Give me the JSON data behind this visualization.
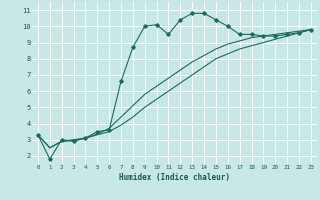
{
  "xlabel": "Humidex (Indice chaleur)",
  "bg_color": "#c8e8e8",
  "line_color": "#1a6b5a",
  "grid_color": "#ffffff",
  "xlim": [
    -0.5,
    23.5
  ],
  "ylim": [
    1.5,
    11.5
  ],
  "xticks": [
    0,
    1,
    2,
    3,
    4,
    5,
    6,
    7,
    8,
    9,
    10,
    11,
    12,
    13,
    14,
    15,
    16,
    17,
    18,
    19,
    20,
    21,
    22,
    23
  ],
  "yticks": [
    2,
    3,
    4,
    5,
    6,
    7,
    8,
    9,
    10,
    11
  ],
  "curve1_x": [
    0,
    1,
    2,
    3,
    4,
    5,
    6,
    7,
    8,
    9,
    10,
    11,
    12,
    13,
    14,
    15,
    16,
    17,
    18,
    19,
    20,
    21,
    22,
    23
  ],
  "curve1_y": [
    3.3,
    1.8,
    3.0,
    2.9,
    3.1,
    3.5,
    3.6,
    6.6,
    8.7,
    10.0,
    10.1,
    9.5,
    10.4,
    10.8,
    10.8,
    10.4,
    10.0,
    9.5,
    9.5,
    9.4,
    9.4,
    9.5,
    9.6,
    9.8
  ],
  "curve2_x": [
    0,
    1,
    2,
    3,
    4,
    5,
    6,
    7,
    8,
    9,
    10,
    11,
    12,
    13,
    14,
    15,
    16,
    17,
    18,
    19,
    20,
    21,
    22,
    23
  ],
  "curve2_y": [
    3.3,
    2.5,
    2.9,
    3.0,
    3.1,
    3.3,
    3.5,
    3.9,
    4.4,
    5.0,
    5.5,
    6.0,
    6.5,
    7.0,
    7.5,
    8.0,
    8.3,
    8.6,
    8.8,
    9.0,
    9.2,
    9.4,
    9.6,
    9.8
  ],
  "curve3_x": [
    0,
    1,
    2,
    3,
    4,
    5,
    6,
    7,
    8,
    9,
    10,
    11,
    12,
    13,
    14,
    15,
    16,
    17,
    18,
    19,
    20,
    21,
    22,
    23
  ],
  "curve3_y": [
    3.3,
    2.5,
    2.9,
    2.95,
    3.1,
    3.35,
    3.7,
    4.4,
    5.1,
    5.8,
    6.3,
    6.8,
    7.3,
    7.8,
    8.2,
    8.6,
    8.9,
    9.1,
    9.3,
    9.4,
    9.5,
    9.6,
    9.7,
    9.8
  ]
}
